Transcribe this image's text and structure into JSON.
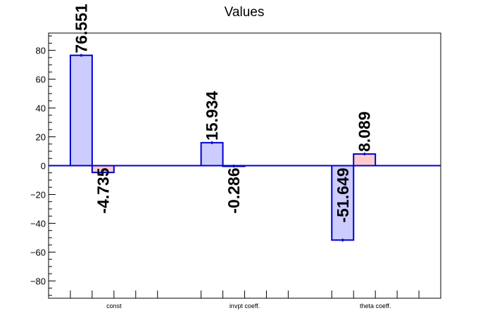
{
  "chart_data": {
    "type": "bar",
    "title": "Values",
    "xlabel": "",
    "ylabel": "",
    "categories": [
      "const",
      "invpt coeff.",
      "theta coeff."
    ],
    "series": [
      {
        "values": [
          76.551,
          15.934,
          -51.649
        ],
        "color": "#0000cc",
        "fill": "#ccccff"
      },
      {
        "values": [
          -4.735,
          -0.286,
          8.089
        ],
        "color": "#0000cc",
        "fill": "#ffcccc"
      }
    ],
    "data_labels": [
      [
        "76.551",
        "15.934",
        "-51.649"
      ],
      [
        "-4.735",
        "-0.286",
        "8.089"
      ]
    ],
    "y_ticks": [
      -80,
      -60,
      -40,
      -20,
      0,
      20,
      40,
      60,
      80
    ],
    "y_tick_labels": [
      "−80",
      "−60",
      "−40",
      "−20",
      "0",
      "20",
      "40",
      "60",
      "80"
    ],
    "ylim": [
      -92,
      92
    ],
    "grid": false,
    "legend": "none",
    "baseline_color": "#0000cc",
    "axis_color": "#000000"
  }
}
